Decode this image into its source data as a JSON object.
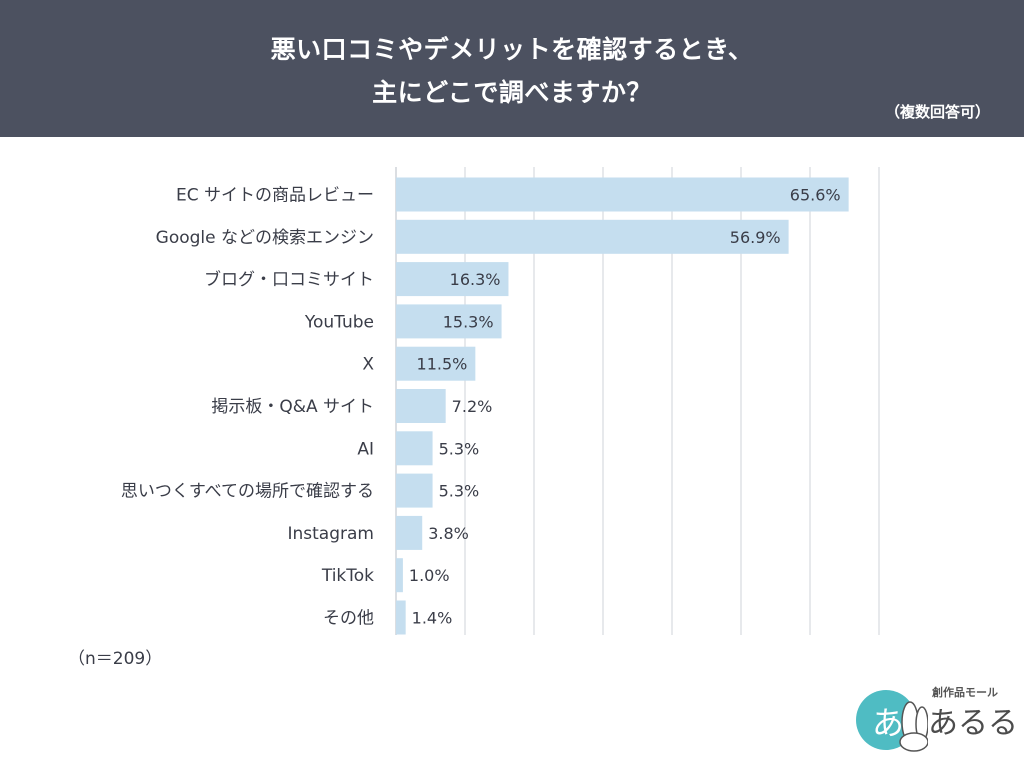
{
  "header": {
    "title_line1": "悪い口コミやデメリットを確認するとき、",
    "title_line2": "主にどこで調べますか？",
    "note": "（複数回答可）"
  },
  "sample_note": "（n＝209）",
  "logo": {
    "mark_text": "あ",
    "sub_text": "創作品モール",
    "main_text": "あるる"
  },
  "chart_data": {
    "type": "bar",
    "orientation": "horizontal",
    "title": "悪い口コミやデメリットを確認するとき、主にどこで調べますか？",
    "categories": [
      "EC サイトの商品レビュー",
      "Google などの検索エンジン",
      "ブログ・口コミサイト",
      "YouTube",
      "X",
      "掲示板・Q&A サイト",
      "AI",
      "思いつくすべての場所で確認する",
      "Instagram",
      "TikTok",
      "その他"
    ],
    "values": [
      65.6,
      56.9,
      16.3,
      15.3,
      11.5,
      7.2,
      5.3,
      5.3,
      3.8,
      1.0,
      1.4
    ],
    "value_labels": [
      "65.6%",
      "56.9%",
      "16.3%",
      "15.3%",
      "11.5%",
      "7.2%",
      "5.3%",
      "5.3%",
      "3.8%",
      "1.0%",
      "1.4%"
    ],
    "xlim": [
      0,
      70
    ],
    "xticks": [
      0,
      10,
      20,
      30,
      40,
      50,
      60,
      70
    ],
    "xunit": "（%）",
    "grid": true,
    "bar_color": "#c5deef",
    "grid_color": "#cfd3d9"
  }
}
